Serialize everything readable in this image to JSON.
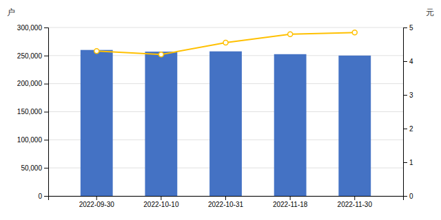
{
  "chart_data": {
    "type": "bar",
    "categories": [
      "2022-09-30",
      "2022-10-10",
      "2022-10-31",
      "2022-11-18",
      "2022-11-30"
    ],
    "series": [
      {
        "type": "bar",
        "color": "#4472C4",
        "values": [
          260000,
          257000,
          257500,
          252500,
          250000
        ]
      },
      {
        "type": "line",
        "axis": "y2",
        "color": "#FFC000",
        "marker": "circle",
        "values": [
          4.3,
          4.2,
          4.55,
          4.8,
          4.85
        ]
      }
    ],
    "ylabel": "户",
    "y2label": "元",
    "ylim": [
      0,
      300000
    ],
    "yticks": [
      0,
      {
        "value": 50000,
        "label": "50,000"
      },
      {
        "value": 100000,
        "label": "100,000"
      },
      {
        "value": 150000,
        "label": "150,000"
      },
      {
        "value": 200000,
        "label": "200,000"
      },
      {
        "value": 250000,
        "label": "250,000"
      },
      {
        "value": 300000,
        "label": "300,000"
      }
    ],
    "y2lim": [
      0,
      5
    ],
    "y2ticks": [
      0,
      1,
      2,
      3,
      4,
      5
    ],
    "grid": true
  }
}
